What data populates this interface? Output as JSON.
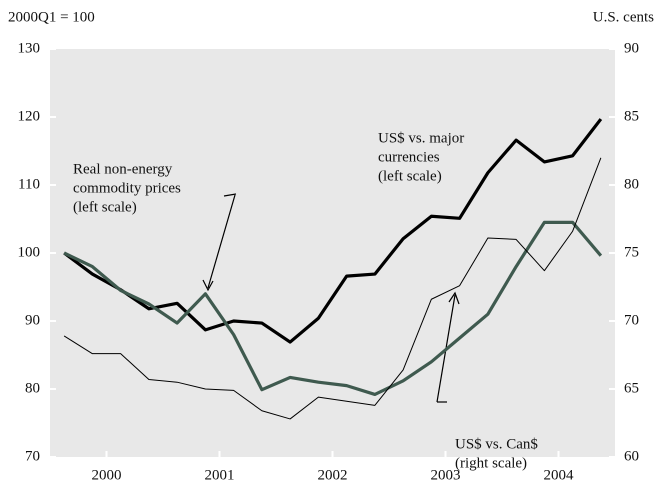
{
  "chart_data": {
    "type": "line",
    "ylabel": "2000Q1 = 100",
    "y2label": "U.S. cents",
    "x": [
      2000.125,
      2000.375,
      2000.625,
      2000.875,
      2001.125,
      2001.375,
      2001.625,
      2001.875,
      2002.125,
      2002.375,
      2002.625,
      2002.875,
      2003.125,
      2003.375,
      2003.625,
      2003.875,
      2004.125,
      2004.375,
      2004.625,
      2004.875
    ],
    "xlim": [
      2000,
      2005
    ],
    "xticks": [
      {
        "value": 2000.5,
        "label": "2000"
      },
      {
        "value": 2001.5,
        "label": "2001"
      },
      {
        "value": 2002.5,
        "label": "2002"
      },
      {
        "value": 2003.5,
        "label": "2003"
      },
      {
        "value": 2004.5,
        "label": "2004"
      }
    ],
    "ylim": [
      70,
      130
    ],
    "yticks": [
      70,
      80,
      90,
      100,
      110,
      120,
      130
    ],
    "y2lim": [
      60,
      90
    ],
    "y2ticks": [
      60,
      65,
      70,
      75,
      80,
      85,
      90
    ],
    "series": [
      {
        "name": "US$ vs. major currencies",
        "color": "#000000",
        "width": 3.2,
        "values": [
          100,
          96.9,
          94.6,
          91.8,
          92.6,
          88.7,
          90,
          89.7,
          86.9,
          90.4,
          96.6,
          96.9,
          102.1,
          105.4,
          105.1,
          111.8,
          116.6,
          113.4,
          114.3,
          119.7
        ]
      },
      {
        "name": "Real non-energy commodity prices",
        "color": "#3f5a4f",
        "width": 3.2,
        "values": [
          100,
          98,
          94.5,
          92.5,
          89.7,
          94,
          88,
          79.9,
          81.7,
          81,
          80.5,
          79.2,
          81.2,
          84,
          87.5,
          91,
          98,
          104.5,
          104.5,
          99.6
        ]
      },
      {
        "name": "US$ vs. Can$",
        "color": "#000000",
        "width": 1,
        "axis": "y2",
        "values": [
          68.9,
          67.6,
          67.6,
          65.7,
          65.5,
          65.0,
          64.9,
          63.4,
          62.8,
          64.4,
          64.1,
          63.8,
          66.4,
          71.6,
          72.6,
          76.1,
          76.0,
          73.7,
          76.6,
          82.0
        ]
      }
    ],
    "annotations": [
      [
        "US$ vs. major",
        "currencies",
        "(left scale)"
      ],
      [
        "Real non-energy",
        "commodity prices",
        "(left scale)"
      ],
      [
        "US$ vs. Can$",
        "(right scale)"
      ]
    ]
  }
}
